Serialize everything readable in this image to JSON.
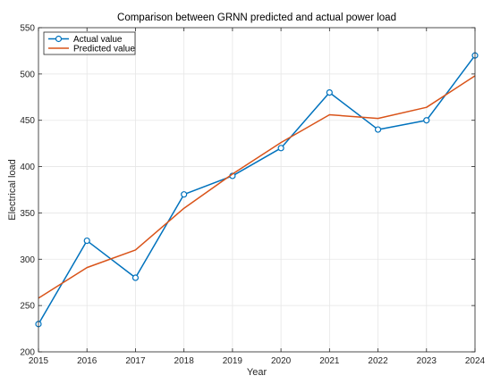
{
  "chart_data": {
    "type": "line",
    "title": "Comparison between GRNN predicted and actual power load",
    "xlabel": "Year",
    "ylabel": "Electrical load",
    "x": [
      2015,
      2016,
      2017,
      2018,
      2019,
      2020,
      2021,
      2022,
      2023,
      2024
    ],
    "xlim": [
      2015,
      2024
    ],
    "ylim": [
      200,
      550
    ],
    "yticks": [
      200,
      250,
      300,
      350,
      400,
      450,
      500,
      550
    ],
    "grid": true,
    "legend_position": "top-left",
    "series": [
      {
        "name": "Actual value",
        "color": "#0072BD",
        "marker": "circle",
        "values": [
          230,
          320,
          280,
          370,
          390,
          420,
          480,
          440,
          450,
          520
        ]
      },
      {
        "name": "Predicted value",
        "color": "#D95319",
        "marker": "none",
        "values": [
          258,
          291,
          310,
          355,
          392,
          426,
          456,
          452,
          464,
          498
        ]
      }
    ]
  }
}
